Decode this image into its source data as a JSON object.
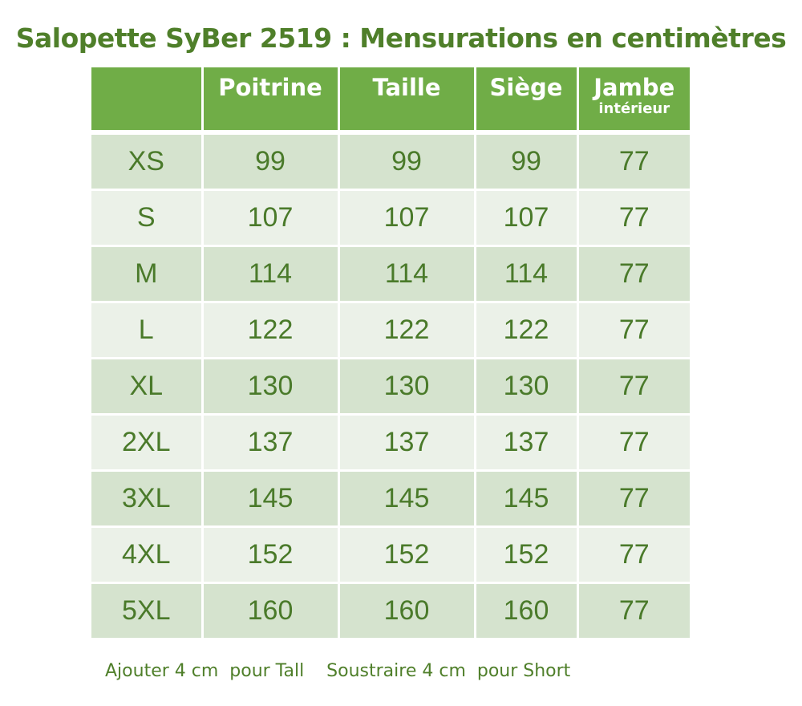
{
  "title": "Salopette SyBer 2519 : Mensurations en centimètres",
  "headers": {
    "size": "",
    "chest": "Poitrine",
    "waist": "Taille",
    "seat": "Siège",
    "leg": "Jambe",
    "leg_sub": "intérieur"
  },
  "rows": [
    {
      "size": "XS",
      "chest": "99",
      "waist": "99",
      "seat": "99",
      "leg": "77"
    },
    {
      "size": "S",
      "chest": "107",
      "waist": "107",
      "seat": "107",
      "leg": "77"
    },
    {
      "size": "M",
      "chest": "114",
      "waist": "114",
      "seat": "114",
      "leg": "77"
    },
    {
      "size": "L",
      "chest": "122",
      "waist": "122",
      "seat": "122",
      "leg": "77"
    },
    {
      "size": "XL",
      "chest": "130",
      "waist": "130",
      "seat": "130",
      "leg": "77"
    },
    {
      "size": "2XL",
      "chest": "137",
      "waist": "137",
      "seat": "137",
      "leg": "77"
    },
    {
      "size": "3XL",
      "chest": "145",
      "waist": "145",
      "seat": "145",
      "leg": "77"
    },
    {
      "size": "4XL",
      "chest": "152",
      "waist": "152",
      "seat": "152",
      "leg": "77"
    },
    {
      "size": "5XL",
      "chest": "160",
      "waist": "160",
      "seat": "160",
      "leg": "77"
    }
  ],
  "notes": {
    "tall": "Ajouter 4 cm  pour Tall",
    "short": "Soustraire 4 cm  pour Short"
  },
  "colors": {
    "header_bg": "#70ad47",
    "row_dark": "#d5e3ce",
    "row_light": "#ebf1e8",
    "text_green": "#4f7f2a"
  }
}
